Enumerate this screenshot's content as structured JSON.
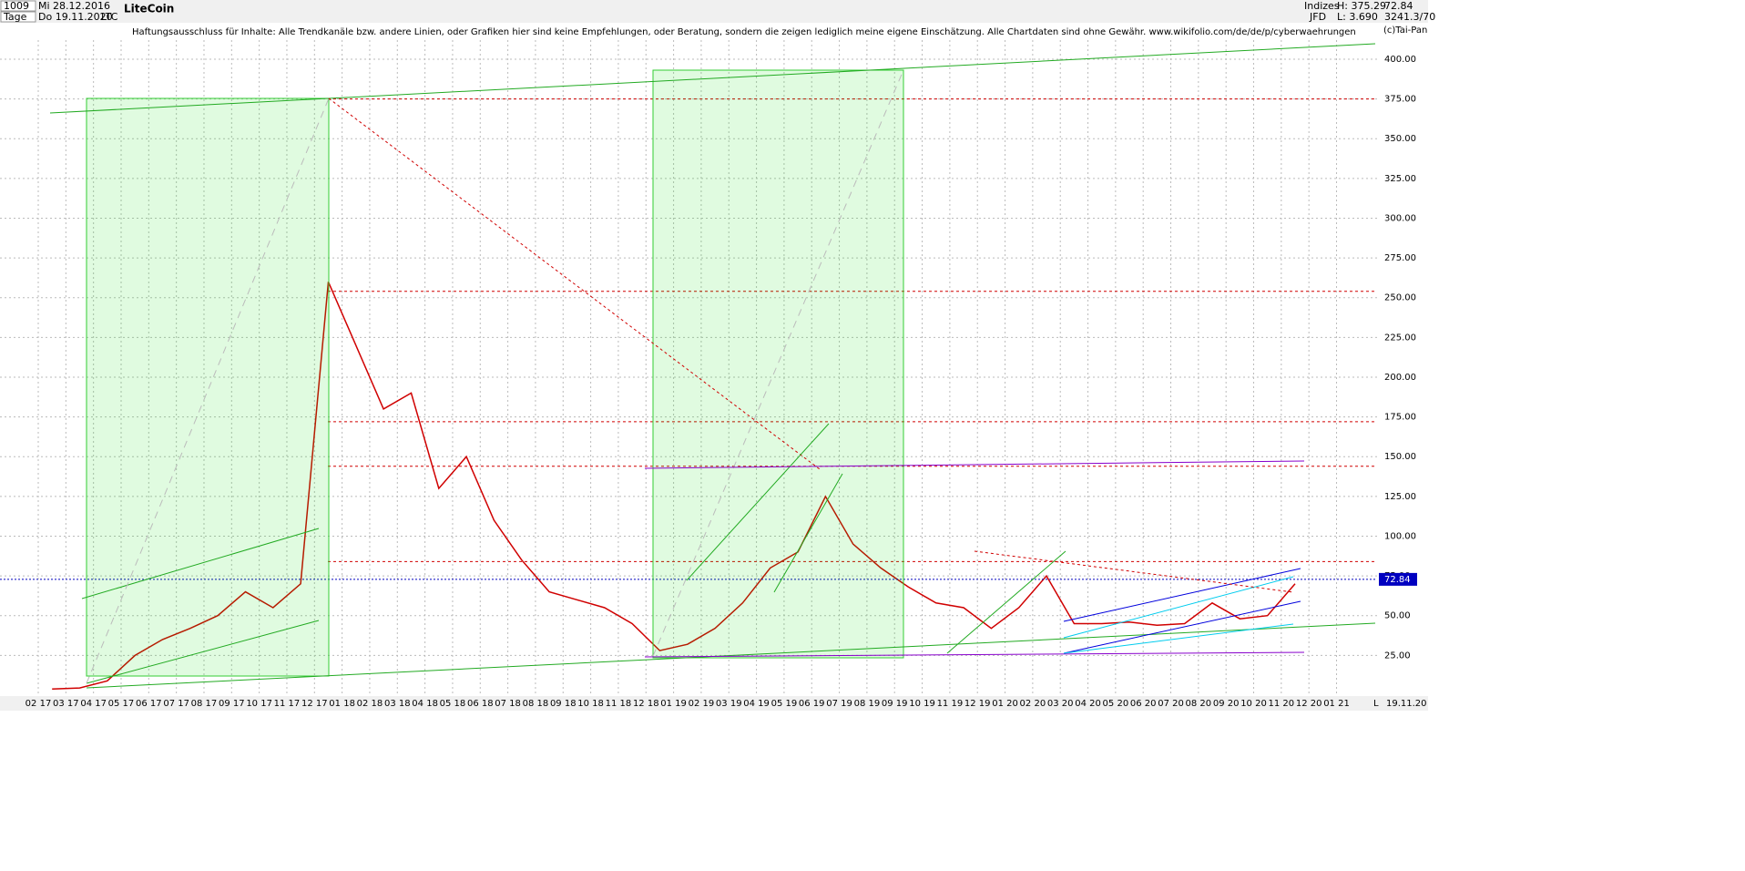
{
  "header": {
    "count": "1009",
    "start_date": "Mi 28.12.2016",
    "period": "Tage",
    "end_date": "Do 19.11.2020",
    "symbol": "LTC",
    "name": "LiteCoin",
    "disclaimer": "Haftungsausschluss für Inhalte: Alle Trendkanäle bzw. andere Linien, oder Grafiken hier sind keine Empfehlungen, oder Beratung, sondern die zeigen lediglich meine eigene Einschätzung. Alle Chartdaten sind ohne Gewähr.  www.wikifolio.com/de/de/p/cyberwaehrungen",
    "market": "Indizes",
    "broker": "JFD",
    "high": "H: 375.29",
    "low": "L: 3.690",
    "last": "72.84",
    "info": "3241.3/70",
    "copyright": "(c)Tai-Pan",
    "footer_mode": "L",
    "footer_date": "19.11.20"
  },
  "chart_data": {
    "type": "line",
    "categories": [
      "02 17",
      "03 17",
      "04 17",
      "05 17",
      "06 17",
      "07 17",
      "08 17",
      "09 17",
      "10 17",
      "11 17",
      "12 17",
      "01 18",
      "02 18",
      "03 18",
      "04 18",
      "05 18",
      "06 18",
      "07 18",
      "08 18",
      "09 18",
      "10 18",
      "11 18",
      "12 18",
      "01 19",
      "02 19",
      "03 19",
      "04 19",
      "05 19",
      "06 19",
      "07 19",
      "08 19",
      "09 19",
      "10 19",
      "11 19",
      "12 19",
      "01 20",
      "02 20",
      "03 20",
      "04 20",
      "05 20",
      "06 20",
      "07 20",
      "08 20",
      "09 20",
      "10 20",
      "11 20",
      "12 20",
      "01 21"
    ],
    "series": [
      {
        "name": "LTC",
        "color": "#d00000",
        "values": [
          3.9,
          4.5,
          9,
          25,
          35,
          42,
          50,
          65,
          55,
          70,
          260,
          220,
          180,
          190,
          130,
          150,
          110,
          85,
          65,
          60,
          55,
          45,
          28,
          32,
          42,
          58,
          80,
          90,
          125,
          95,
          80,
          68,
          58,
          55,
          42,
          55,
          75,
          45,
          45,
          46,
          44,
          45,
          58,
          48,
          50,
          70,
          null,
          null
        ]
      }
    ],
    "ylim": [
      0,
      412
    ],
    "yticks": [
      {
        "value": 25,
        "label": "25.00"
      },
      {
        "value": 50,
        "label": "50.00"
      },
      {
        "value": 75,
        "label": "75.00"
      },
      {
        "value": 100,
        "label": "100.00"
      },
      {
        "value": 125,
        "label": "125.00"
      },
      {
        "value": 150,
        "label": "150.00"
      },
      {
        "value": 175,
        "label": "175.00"
      },
      {
        "value": 200,
        "label": "200.00"
      },
      {
        "value": 225,
        "label": "225.00"
      },
      {
        "value": 250,
        "label": "250.00"
      },
      {
        "value": 275,
        "label": "275.00"
      },
      {
        "value": 300,
        "label": "300.00"
      },
      {
        "value": 325,
        "label": "325.00"
      },
      {
        "value": 350,
        "label": "350.00"
      },
      {
        "value": 375,
        "label": "375.00"
      },
      {
        "value": 400,
        "label": "400.00"
      }
    ],
    "grid": true,
    "hlines": [
      {
        "value": 375,
        "color": "#d00000"
      },
      {
        "value": 254,
        "color": "#d00000"
      },
      {
        "value": 172,
        "color": "#d00000"
      },
      {
        "value": 144,
        "color": "#d00000"
      },
      {
        "value": 84,
        "color": "#d00000"
      }
    ],
    "last_price": 72.84,
    "last_color": "#0000c0"
  }
}
